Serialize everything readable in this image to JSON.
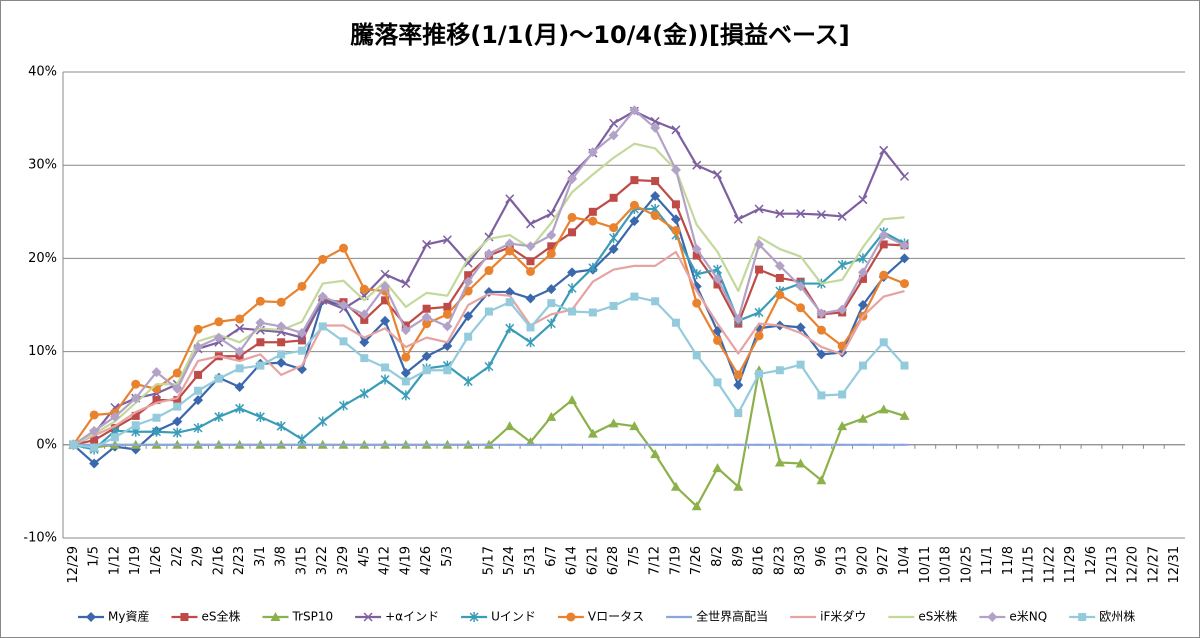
{
  "chart_data": {
    "type": "line",
    "title": "騰落率推移(1/1(月)～10/4(金))[損益ベース]",
    "categories": [
      "12/29",
      "1/5",
      "1/12",
      "1/19",
      "1/26",
      "2/2",
      "2/9",
      "2/16",
      "2/23",
      "3/1",
      "3/8",
      "3/15",
      "3/22",
      "3/29",
      "4/5",
      "4/12",
      "4/19",
      "4/26",
      "5/3",
      null,
      "5/17",
      "5/24",
      "5/31",
      "6/7",
      "6/14",
      "6/21",
      "6/28",
      "7/5",
      "7/12",
      "7/19",
      "7/26",
      "8/2",
      "8/9",
      "8/16",
      "8/23",
      "8/30",
      "9/6",
      "9/13",
      "9/20",
      "9/27",
      "10/4",
      "10/11",
      "10/18",
      "10/25",
      "11/1",
      "11/8",
      "11/15",
      "11/22",
      "11/29",
      "12/6",
      "12/13",
      "12/20",
      "12/27",
      "12/31"
    ],
    "ylim": [
      -10,
      40
    ],
    "yticks": [
      {
        "value": -10,
        "label": "-10%"
      },
      {
        "value": 0,
        "label": "0%"
      },
      {
        "value": 10,
        "label": "10%"
      },
      {
        "value": 20,
        "label": "20%"
      },
      {
        "value": 30,
        "label": "30%"
      },
      {
        "value": 40,
        "label": "40%"
      }
    ],
    "grid": true,
    "legend": "bottom",
    "series": [
      {
        "name": "My資産",
        "color": "#3b68ad",
        "marker": "diamond",
        "values": [
          0,
          -2,
          -0.2,
          -0.5,
          1.5,
          2.5,
          4.8,
          7.2,
          6.2,
          8.7,
          8.8,
          8.1,
          15.5,
          15,
          11,
          13.3,
          7.7,
          9.5,
          10.6,
          13.8,
          16.4,
          16.4,
          15.7,
          16.7,
          18.5,
          18.8,
          21,
          24,
          26.7,
          24.2,
          17,
          12.2,
          6.4,
          12.5,
          12.8,
          12.6,
          9.7,
          9.9,
          15,
          18,
          20,
          null,
          null,
          null,
          null,
          null,
          null,
          null,
          null,
          null,
          null,
          null,
          null,
          null
        ]
      },
      {
        "name": "eS全株",
        "color": "#be4b48",
        "marker": "square",
        "values": [
          0,
          0.5,
          1.8,
          3.1,
          4.8,
          4.8,
          7.5,
          9.5,
          9.5,
          11,
          11,
          11.2,
          15.6,
          15.3,
          13.4,
          15.5,
          12.8,
          14.6,
          14.8,
          18.2,
          20.3,
          21.2,
          19.7,
          21.3,
          22.8,
          25,
          26.5,
          28.4,
          28.3,
          25.8,
          20.3,
          17.2,
          13,
          18.8,
          17.9,
          17.5,
          14,
          14.2,
          17.8,
          21.5,
          21.4,
          null,
          null,
          null,
          null,
          null,
          null,
          null,
          null,
          null,
          null,
          null,
          null,
          null
        ]
      },
      {
        "name": "TrSP10",
        "color": "#8db14a",
        "marker": "triangle",
        "values": [
          0,
          -0.3,
          0,
          0,
          0,
          0,
          0,
          0,
          0,
          0,
          0,
          0,
          0,
          0,
          0,
          0,
          0,
          0,
          0,
          0,
          0,
          2,
          0.3,
          3,
          4.8,
          1.2,
          2.3,
          2,
          -1,
          -4.5,
          -6.6,
          -2.5,
          -4.5,
          8,
          -1.9,
          -2,
          -3.8,
          2,
          2.8,
          3.8,
          3.1,
          null,
          null,
          null,
          null,
          null,
          null,
          null,
          null,
          null,
          null,
          null,
          null,
          null
        ]
      },
      {
        "name": "+αインド",
        "color": "#7d60a0",
        "marker": "x",
        "values": [
          0,
          1.2,
          4,
          5,
          5.5,
          6.5,
          10.3,
          11,
          12.5,
          12.3,
          12.1,
          11.5,
          15.5,
          14.6,
          16,
          18.3,
          17.3,
          21.5,
          22,
          19.5,
          22.3,
          26.4,
          23.7,
          24.8,
          29,
          31.3,
          34.5,
          35.8,
          34.7,
          33.8,
          30,
          29,
          24.2,
          25.3,
          24.8,
          24.8,
          24.7,
          24.5,
          26.3,
          31.6,
          28.8,
          null,
          null,
          null,
          null,
          null,
          null,
          null,
          null,
          null,
          null,
          null,
          null,
          null
        ]
      },
      {
        "name": "Uインド",
        "color": "#3a9db8",
        "marker": "star",
        "values": [
          0,
          -0.5,
          1.5,
          1.4,
          1.4,
          1.3,
          1.8,
          3,
          3.9,
          3,
          2,
          0.6,
          2.5,
          4.2,
          5.5,
          7,
          5.3,
          8.2,
          8.5,
          6.8,
          8.4,
          12.5,
          11,
          13,
          16.8,
          19,
          22.2,
          25.3,
          25.3,
          22.5,
          18.3,
          18.8,
          13.3,
          14.2,
          16.5,
          17.3,
          17.3,
          19.3,
          20,
          22.8,
          21.6,
          null,
          null,
          null,
          null,
          null,
          null,
          null,
          null,
          null,
          null,
          null,
          null,
          null
        ]
      },
      {
        "name": "Vロータス",
        "color": "#e9822f",
        "marker": "circle",
        "values": [
          0,
          3.2,
          3.4,
          6.5,
          6,
          7.7,
          12.4,
          13.2,
          13.5,
          15.4,
          15.3,
          17,
          19.9,
          21.1,
          16.7,
          16.5,
          9.4,
          13,
          14,
          16.5,
          18.7,
          20.8,
          18.6,
          20.5,
          24.4,
          24,
          23.3,
          25.7,
          24.6,
          23,
          15.2,
          11.2,
          7.5,
          11.7,
          16.1,
          14.7,
          12.3,
          10.6,
          13.8,
          18.2,
          17.3,
          null,
          null,
          null,
          null,
          null,
          null,
          null,
          null,
          null,
          null,
          null,
          null,
          null
        ]
      },
      {
        "name": "全世界高配当",
        "color": "#8aa6dc",
        "marker": "dash",
        "values": [
          0,
          0,
          0,
          0,
          0,
          0,
          0,
          0,
          0,
          0,
          0,
          0,
          0,
          0,
          0,
          0,
          0,
          0,
          0,
          0,
          0,
          0,
          0,
          0,
          0,
          0,
          0,
          0,
          0,
          0,
          0,
          0,
          0,
          0,
          0,
          0,
          0,
          0,
          0,
          0,
          0,
          null,
          null,
          null,
          null,
          null,
          null,
          null,
          null,
          null,
          null,
          null,
          null,
          null
        ]
      },
      {
        "name": "iF米ダウ",
        "color": "#e6a3a2",
        "marker": "none",
        "values": [
          0,
          1,
          2,
          3.5,
          4.5,
          5,
          9,
          9.5,
          9,
          9.7,
          7.5,
          8.5,
          12.8,
          12.8,
          11.5,
          12.5,
          10.5,
          11.5,
          11,
          15,
          16.2,
          16,
          12.8,
          14,
          14.5,
          17.5,
          18.8,
          19.2,
          19.2,
          20.7,
          16.5,
          13,
          9.8,
          13,
          12.8,
          12,
          10.5,
          9.7,
          13.8,
          15.9,
          16.5,
          null,
          null,
          null,
          null,
          null,
          null,
          null,
          null,
          null,
          null,
          null,
          null,
          null
        ]
      },
      {
        "name": "eS米株",
        "color": "#c3d89b",
        "marker": "none",
        "values": [
          0,
          1.2,
          2.5,
          4.5,
          6.5,
          6.5,
          11.1,
          11.8,
          11,
          12.5,
          12.3,
          13.2,
          17.3,
          17.6,
          15.5,
          17.5,
          14.8,
          16.3,
          16,
          20,
          22.1,
          22.5,
          21.1,
          23.8,
          27.1,
          29,
          30.8,
          32.3,
          31.8,
          29.5,
          23.6,
          20.7,
          16.5,
          22.3,
          21,
          20.2,
          17.3,
          17.7,
          21.2,
          24.2,
          24.4,
          null,
          null,
          null,
          null,
          null,
          null,
          null,
          null,
          null,
          null,
          null,
          null,
          null
        ]
      },
      {
        "name": "e米NQ",
        "color": "#b3a2c8",
        "marker": "diamond",
        "values": [
          0,
          1.5,
          3,
          5,
          7.8,
          6,
          10.5,
          11.5,
          10,
          13.1,
          12.7,
          12,
          15.9,
          15,
          14,
          17,
          12.3,
          13.7,
          12.7,
          17.5,
          20.5,
          21.6,
          21.3,
          22.5,
          28.5,
          31.4,
          33.2,
          35.9,
          34,
          29.5,
          21,
          17.8,
          13.5,
          21.5,
          19.2,
          17,
          14.1,
          14.5,
          18.5,
          22.5,
          21.4,
          null,
          null,
          null,
          null,
          null,
          null,
          null,
          null,
          null,
          null,
          null,
          null,
          null
        ]
      },
      {
        "name": "欧州株",
        "color": "#93cbdc",
        "marker": "square",
        "values": [
          0,
          -0.3,
          0.8,
          2.1,
          2.9,
          4.1,
          5.8,
          7.1,
          8.2,
          8.5,
          9.7,
          10.1,
          12.7,
          11.1,
          9.3,
          8.3,
          6.8,
          8,
          8,
          11.6,
          14.3,
          15.3,
          12.6,
          15.2,
          14.3,
          14.2,
          14.9,
          15.9,
          15.4,
          13.1,
          9.6,
          6.7,
          3.4,
          7.6,
          8,
          8.6,
          5.3,
          5.4,
          8.5,
          11,
          8.5,
          null,
          null,
          null,
          null,
          null,
          null,
          null,
          null,
          null,
          null,
          null,
          null,
          null
        ]
      }
    ]
  }
}
